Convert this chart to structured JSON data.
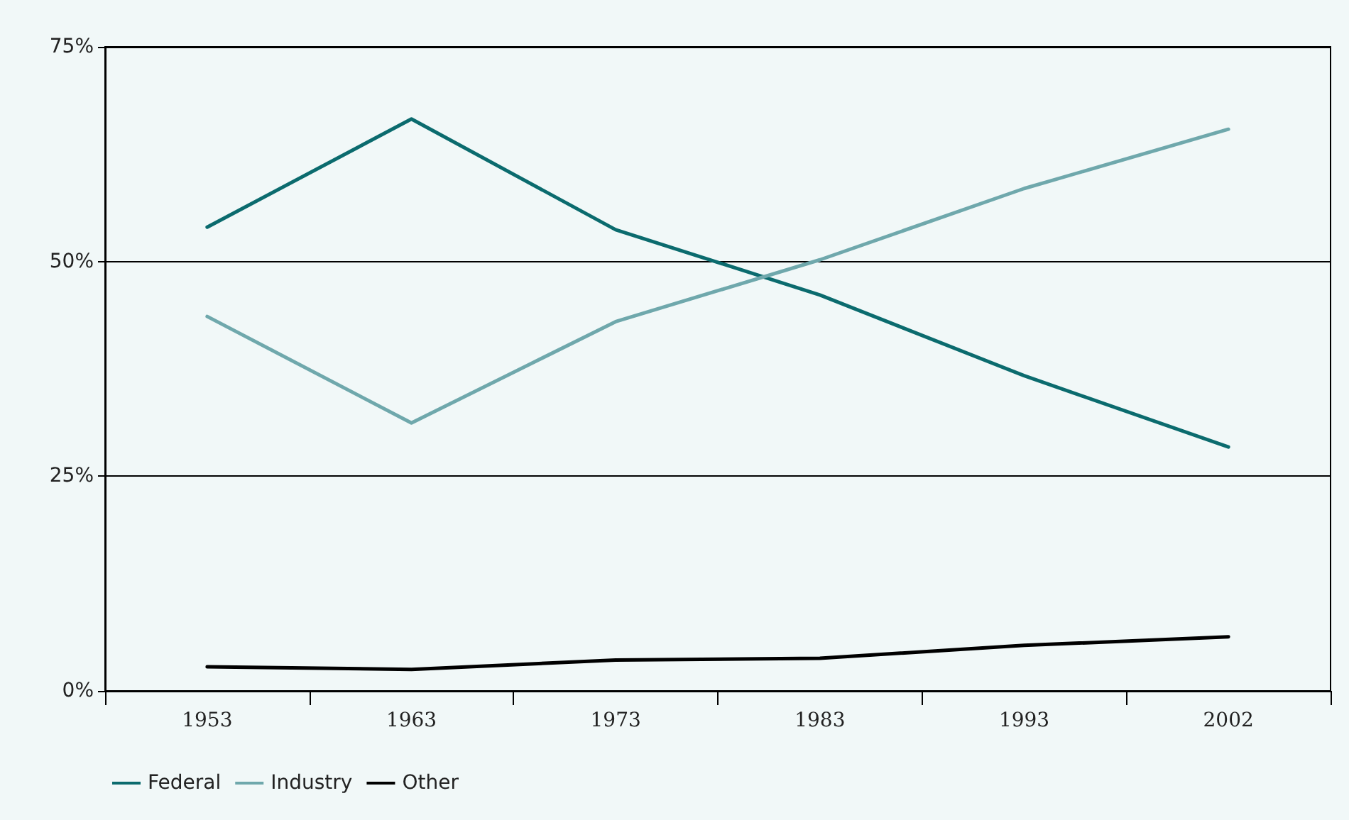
{
  "chart_data": {
    "type": "line",
    "categories": [
      "1953",
      "1963",
      "1973",
      "1983",
      "1993",
      "2002"
    ],
    "series": [
      {
        "name": "Federal",
        "color": "#0b6b6e",
        "values": [
          54.0,
          66.6,
          53.7,
          46.1,
          36.7,
          28.4
        ]
      },
      {
        "name": "Industry",
        "color": "#6fa8ac",
        "values": [
          43.6,
          31.2,
          43.0,
          50.2,
          58.5,
          65.4
        ]
      },
      {
        "name": "Other",
        "color": "#000000",
        "values": [
          2.8,
          2.5,
          3.6,
          3.8,
          5.3,
          6.3
        ]
      }
    ],
    "ylim": [
      0,
      75
    ],
    "yticks": [
      {
        "value": 0,
        "label": "0%"
      },
      {
        "value": 25,
        "label": "25%"
      },
      {
        "value": 50,
        "label": "50%"
      },
      {
        "value": 75,
        "label": "75%"
      }
    ],
    "grid": "y",
    "legend": "bottom left",
    "marker": "none",
    "line_style": "solid"
  }
}
